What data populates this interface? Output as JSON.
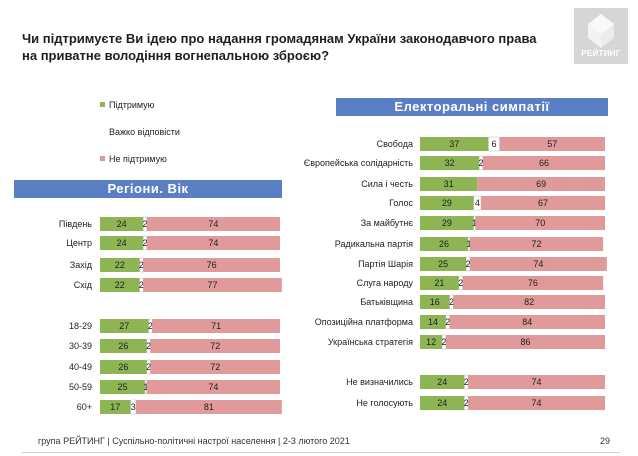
{
  "title": "Чи підтримуєте Ви ідею про надання громадянам України законодавчого права на приватне володіння вогнепальною зброєю?",
  "logo_text": "РЕЙТИНГ",
  "legend": [
    {
      "label": "Підтримую",
      "color": "#8db554"
    },
    {
      "label": "Важко відповісти",
      "color": "#ffffff"
    },
    {
      "label": "Не підтримую",
      "color": "#e09a9a"
    }
  ],
  "footer": "група РЕЙТИНГ | Суспільно-політичні настрої населення  | 2-3 лютого 2021",
  "page_number": "29",
  "colors": {
    "support": "#8db554",
    "hard": "#ffffff",
    "oppose": "#e09a9a",
    "header": "#5b7fc4"
  },
  "chart_data": [
    {
      "type": "bar",
      "stacked": true,
      "orientation": "horizontal",
      "title": "Регіони. Вік",
      "series_keys": [
        "Підтримую",
        "Важко відповісти",
        "Не підтримую"
      ],
      "categories": [
        "Південь",
        "Центр",
        "Захід",
        "Схід",
        "18-29",
        "30-39",
        "40-49",
        "50-59",
        "60+"
      ],
      "rows": [
        {
          "label": "Південь",
          "values": [
            24,
            2,
            74
          ]
        },
        {
          "label": "Центр",
          "values": [
            24,
            2,
            74
          ]
        },
        {
          "label": "Захід",
          "values": [
            22,
            2,
            76
          ]
        },
        {
          "label": "Схід",
          "values": [
            22,
            2,
            77
          ]
        },
        {
          "label": "18-29",
          "values": [
            27,
            2,
            71
          ]
        },
        {
          "label": "30-39",
          "values": [
            26,
            2,
            72
          ]
        },
        {
          "label": "40-49",
          "values": [
            26,
            2,
            72
          ]
        },
        {
          "label": "50-59",
          "values": [
            25,
            1,
            74
          ]
        },
        {
          "label": "60+",
          "values": [
            17,
            3,
            81
          ]
        }
      ]
    },
    {
      "type": "bar",
      "stacked": true,
      "orientation": "horizontal",
      "title": "Електоральні симпатії",
      "series_keys": [
        "Підтримую",
        "Важко відповісти",
        "Не підтримую"
      ],
      "categories": [
        "Свобода",
        "Європейська солідарність",
        "Сила і честь",
        "Голос",
        "За майбутнє",
        "Радикальна партія",
        "Партія Шарія",
        "Слуга народу",
        "Батьківщина",
        "Опозиційна платформа",
        "Українська стратегія",
        "Не визначились",
        "Не голосують"
      ],
      "rows": [
        {
          "label": "Свобода",
          "values": [
            37,
            6,
            57
          ]
        },
        {
          "label": "Європейська солідарність",
          "values": [
            32,
            2,
            66
          ]
        },
        {
          "label": "Сила і честь",
          "values": [
            31,
            null,
            69
          ]
        },
        {
          "label": "Голос",
          "values": [
            29,
            4,
            67
          ]
        },
        {
          "label": "За майбутнє",
          "values": [
            29,
            1,
            70
          ]
        },
        {
          "label": "Радикальна партія",
          "values": [
            26,
            1,
            72
          ]
        },
        {
          "label": "Партія Шарія",
          "values": [
            25,
            2,
            74
          ]
        },
        {
          "label": "Слуга народу",
          "values": [
            21,
            2,
            76
          ]
        },
        {
          "label": "Батьківщина",
          "values": [
            16,
            2,
            82
          ]
        },
        {
          "label": "Опозиційна платформа",
          "values": [
            14,
            2,
            84
          ]
        },
        {
          "label": "Українська стратегія",
          "values": [
            12,
            2,
            86
          ]
        },
        {
          "label": "Не визначились",
          "values": [
            24,
            2,
            74
          ]
        },
        {
          "label": "Не голосують",
          "values": [
            24,
            2,
            74
          ]
        }
      ]
    }
  ]
}
